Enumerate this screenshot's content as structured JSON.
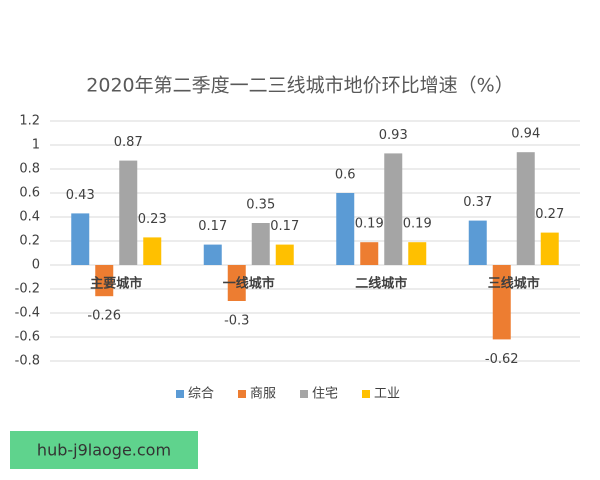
{
  "chart_data": {
    "type": "bar",
    "title": "2020年第二季度一二三线城市地价环比增速（%）",
    "categories": [
      "主要城市",
      "一线城市",
      "二线城市",
      "三线城市"
    ],
    "series": [
      {
        "name": "综合",
        "color": "#5b9bd5",
        "values": [
          0.43,
          0.17,
          0.6,
          0.37
        ]
      },
      {
        "name": "商服",
        "color": "#ed7d31",
        "values": [
          -0.26,
          -0.3,
          0.19,
          -0.62
        ]
      },
      {
        "name": "住宅",
        "color": "#a5a5a5",
        "values": [
          0.87,
          0.35,
          0.93,
          0.94
        ]
      },
      {
        "name": "工业",
        "color": "#ffc000",
        "values": [
          0.23,
          0.17,
          0.19,
          0.27
        ]
      }
    ],
    "ylim": [
      -0.8,
      1.2
    ],
    "yticks": [
      -0.8,
      -0.6,
      -0.4,
      -0.2,
      0,
      0.2,
      0.4,
      0.6,
      0.8,
      1,
      1.2
    ],
    "grid": true,
    "legend": "bottom"
  },
  "watermark": "hub-j9laoge.com"
}
